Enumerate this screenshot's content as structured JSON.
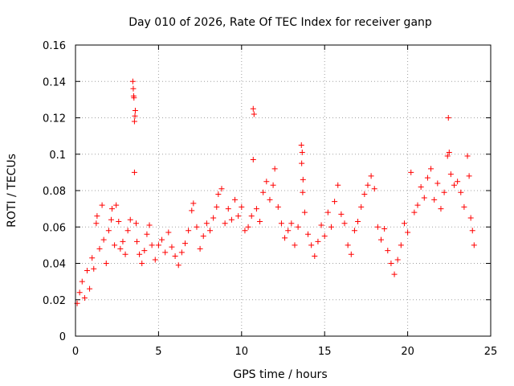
{
  "chart_data": {
    "type": "scatter",
    "title": "Day 010 of 2026, Rate Of TEC Index for receiver ganp",
    "xlabel": "GPS time / hours",
    "ylabel": "ROTI / TECUs",
    "xlim": [
      0,
      25
    ],
    "ylim": [
      0,
      0.16
    ],
    "x_ticks": [
      0,
      5,
      10,
      15,
      20,
      25
    ],
    "x_tick_labels": [
      "0",
      "5",
      "10",
      "15",
      "20",
      "25"
    ],
    "y_ticks": [
      0,
      0.02,
      0.04,
      0.06,
      0.08,
      0.1,
      0.12,
      0.14,
      0.16
    ],
    "y_tick_labels": [
      "0",
      "0.02",
      "0.04",
      "0.06",
      "0.08",
      "0.1",
      "0.12",
      "0.14",
      "0.16"
    ],
    "grid": true,
    "marker": "+",
    "color": "#ff0000",
    "series": [
      {
        "name": "ROTI",
        "points": [
          [
            0.1,
            0.018
          ],
          [
            0.25,
            0.024
          ],
          [
            0.4,
            0.03
          ],
          [
            0.55,
            0.021
          ],
          [
            0.7,
            0.036
          ],
          [
            0.85,
            0.026
          ],
          [
            1.0,
            0.043
          ],
          [
            1.1,
            0.037
          ],
          [
            1.25,
            0.062
          ],
          [
            1.3,
            0.066
          ],
          [
            1.45,
            0.048
          ],
          [
            1.6,
            0.072
          ],
          [
            1.7,
            0.053
          ],
          [
            1.85,
            0.04
          ],
          [
            2.0,
            0.058
          ],
          [
            2.15,
            0.064
          ],
          [
            2.2,
            0.07
          ],
          [
            2.35,
            0.05
          ],
          [
            2.45,
            0.072
          ],
          [
            2.6,
            0.063
          ],
          [
            2.7,
            0.048
          ],
          [
            2.85,
            0.052
          ],
          [
            3.0,
            0.045
          ],
          [
            3.15,
            0.058
          ],
          [
            3.3,
            0.064
          ],
          [
            3.45,
            0.14
          ],
          [
            3.48,
            0.136
          ],
          [
            3.5,
            0.132
          ],
          [
            3.52,
            0.131
          ],
          [
            3.55,
            0.118
          ],
          [
            3.58,
            0.121
          ],
          [
            3.6,
            0.124
          ],
          [
            3.55,
            0.09
          ],
          [
            3.65,
            0.062
          ],
          [
            3.7,
            0.052
          ],
          [
            3.85,
            0.045
          ],
          [
            4.0,
            0.04
          ],
          [
            4.15,
            0.047
          ],
          [
            4.3,
            0.056
          ],
          [
            4.45,
            0.061
          ],
          [
            4.6,
            0.05
          ],
          [
            4.8,
            0.042
          ],
          [
            5.0,
            0.05
          ],
          [
            5.2,
            0.053
          ],
          [
            5.4,
            0.046
          ],
          [
            5.6,
            0.057
          ],
          [
            5.8,
            0.049
          ],
          [
            6.0,
            0.044
          ],
          [
            6.2,
            0.039
          ],
          [
            6.4,
            0.046
          ],
          [
            6.6,
            0.051
          ],
          [
            6.8,
            0.058
          ],
          [
            7.0,
            0.069
          ],
          [
            7.1,
            0.073
          ],
          [
            7.3,
            0.06
          ],
          [
            7.5,
            0.048
          ],
          [
            7.7,
            0.055
          ],
          [
            7.9,
            0.062
          ],
          [
            8.1,
            0.058
          ],
          [
            8.3,
            0.065
          ],
          [
            8.5,
            0.071
          ],
          [
            8.6,
            0.078
          ],
          [
            8.8,
            0.081
          ],
          [
            9.0,
            0.062
          ],
          [
            9.2,
            0.07
          ],
          [
            9.4,
            0.064
          ],
          [
            9.6,
            0.075
          ],
          [
            9.8,
            0.066
          ],
          [
            10.0,
            0.071
          ],
          [
            10.2,
            0.058
          ],
          [
            10.4,
            0.06
          ],
          [
            10.6,
            0.066
          ],
          [
            10.7,
            0.125
          ],
          [
            10.75,
            0.122
          ],
          [
            10.7,
            0.097
          ],
          [
            10.9,
            0.07
          ],
          [
            11.1,
            0.063
          ],
          [
            11.3,
            0.079
          ],
          [
            11.5,
            0.085
          ],
          [
            11.7,
            0.075
          ],
          [
            11.9,
            0.083
          ],
          [
            12.0,
            0.092
          ],
          [
            12.2,
            0.071
          ],
          [
            12.4,
            0.062
          ],
          [
            12.6,
            0.054
          ],
          [
            12.8,
            0.058
          ],
          [
            13.0,
            0.062
          ],
          [
            13.2,
            0.05
          ],
          [
            13.4,
            0.06
          ],
          [
            13.6,
            0.105
          ],
          [
            13.65,
            0.101
          ],
          [
            13.62,
            0.095
          ],
          [
            13.7,
            0.086
          ],
          [
            13.68,
            0.079
          ],
          [
            13.8,
            0.068
          ],
          [
            14.0,
            0.056
          ],
          [
            14.2,
            0.05
          ],
          [
            14.4,
            0.044
          ],
          [
            14.6,
            0.052
          ],
          [
            14.8,
            0.061
          ],
          [
            15.0,
            0.055
          ],
          [
            15.2,
            0.068
          ],
          [
            15.4,
            0.06
          ],
          [
            15.6,
            0.074
          ],
          [
            15.8,
            0.083
          ],
          [
            16.0,
            0.067
          ],
          [
            16.2,
            0.062
          ],
          [
            16.4,
            0.05
          ],
          [
            16.6,
            0.045
          ],
          [
            16.8,
            0.058
          ],
          [
            17.0,
            0.063
          ],
          [
            17.2,
            0.071
          ],
          [
            17.4,
            0.078
          ],
          [
            17.6,
            0.083
          ],
          [
            17.8,
            0.088
          ],
          [
            18.0,
            0.081
          ],
          [
            18.2,
            0.06
          ],
          [
            18.4,
            0.053
          ],
          [
            18.6,
            0.059
          ],
          [
            18.8,
            0.047
          ],
          [
            19.0,
            0.04
          ],
          [
            19.2,
            0.034
          ],
          [
            19.4,
            0.042
          ],
          [
            19.6,
            0.05
          ],
          [
            19.8,
            0.062
          ],
          [
            20.0,
            0.057
          ],
          [
            20.2,
            0.09
          ],
          [
            20.4,
            0.068
          ],
          [
            20.6,
            0.072
          ],
          [
            20.8,
            0.082
          ],
          [
            21.0,
            0.076
          ],
          [
            21.2,
            0.087
          ],
          [
            21.4,
            0.092
          ],
          [
            21.6,
            0.075
          ],
          [
            21.8,
            0.084
          ],
          [
            22.0,
            0.07
          ],
          [
            22.2,
            0.079
          ],
          [
            22.4,
            0.099
          ],
          [
            22.45,
            0.12
          ],
          [
            22.5,
            0.101
          ],
          [
            22.6,
            0.089
          ],
          [
            22.8,
            0.083
          ],
          [
            23.0,
            0.085
          ],
          [
            23.2,
            0.079
          ],
          [
            23.4,
            0.071
          ],
          [
            23.6,
            0.099
          ],
          [
            23.7,
            0.088
          ],
          [
            23.8,
            0.065
          ],
          [
            23.9,
            0.058
          ],
          [
            24.0,
            0.05
          ]
        ]
      }
    ]
  }
}
